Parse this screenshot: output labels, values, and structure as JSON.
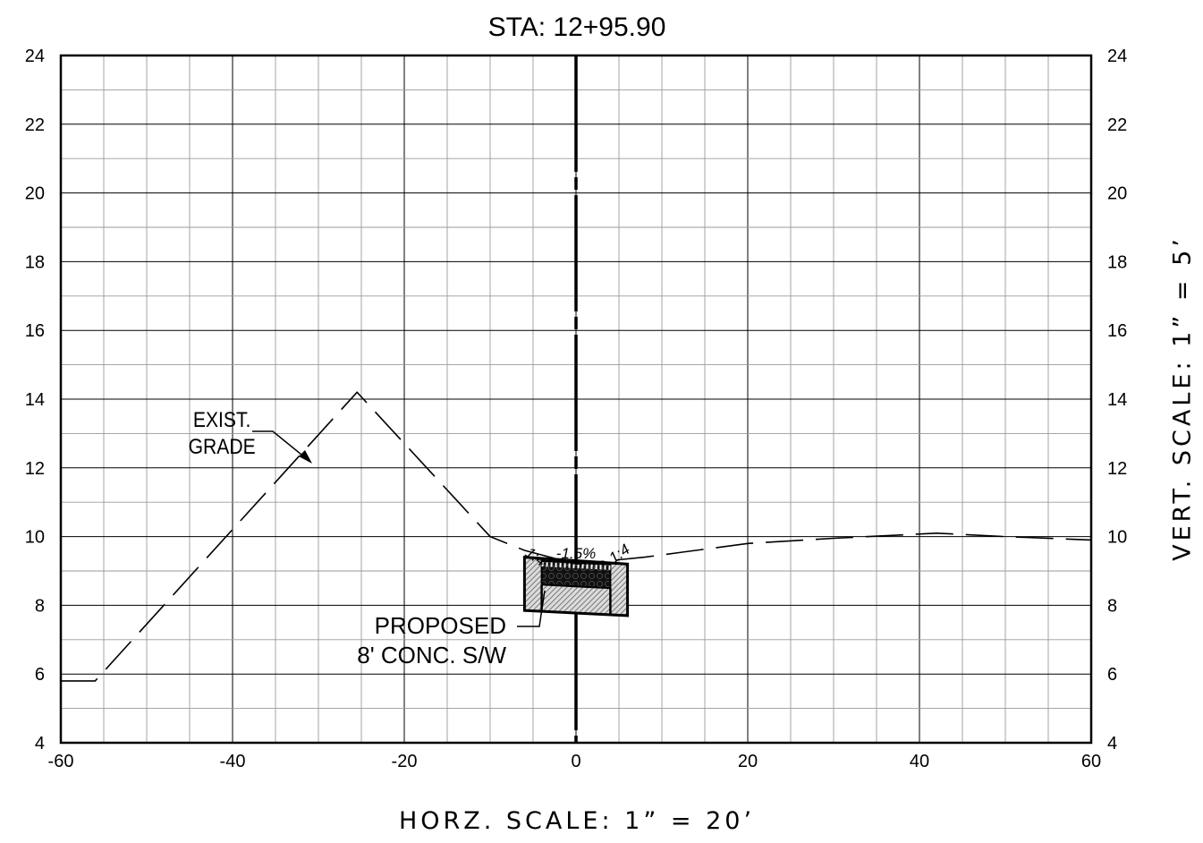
{
  "title": "STA: 12+95.90",
  "horizontal_scale": "HORZ.  SCALE:  1”  =  20’",
  "vertical_scale": "VERT.  SCALE:  1”  =  5’",
  "labels": {
    "exist_grade_line1": "EXIST.",
    "exist_grade_line2": "GRADE",
    "proposed_line1": "PROPOSED",
    "proposed_line2": "8' CONC. S/W",
    "slope_left": "1:4",
    "slope_center": "-1.5%",
    "slope_right": "1:4"
  },
  "chart_data": {
    "type": "line",
    "title": "STA: 12+95.90",
    "xlabel": "HORZ.  SCALE:  1”  =  20’",
    "ylabel": "VERT.  SCALE:  1”  =  5’",
    "xlim": [
      -60,
      60
    ],
    "ylim": [
      4,
      24
    ],
    "x_ticks": [
      -60,
      -40,
      -20,
      0,
      20,
      40,
      60
    ],
    "x_tick_labels": [
      "-60",
      "-40",
      "-20",
      "0",
      "20",
      "40",
      "60"
    ],
    "y_ticks": [
      4,
      6,
      8,
      10,
      12,
      14,
      16,
      18,
      20,
      22,
      24
    ],
    "y_tick_labels": [
      "4",
      "6",
      "8",
      "10",
      "12",
      "14",
      "16",
      "18",
      "20",
      "22",
      "24"
    ],
    "grid": true,
    "series": [
      {
        "name": "EXIST. GRADE",
        "style": "dashed",
        "x": [
          -60,
          -56,
          -25.5,
          -10,
          -6,
          0,
          8,
          20,
          30,
          42,
          50,
          60
        ],
        "y": [
          5.8,
          5.8,
          14.2,
          10.0,
          9.6,
          9.2,
          9.4,
          9.8,
          9.95,
          10.1,
          10.0,
          9.9
        ]
      }
    ],
    "proposed_section": {
      "name": "PROPOSED 8' CONC. S/W",
      "outer_left_x": -6,
      "outer_right_x": 6,
      "top_left_y": 9.4,
      "top_right_y": 9.2,
      "bottom_left_y": 7.85,
      "bottom_right_y": 7.7,
      "concrete_left_x": -4,
      "concrete_right_x": 4,
      "concrete_top_left_y": 9.3,
      "concrete_top_right_y": 9.2,
      "concrete_bottom_left_y": 8.6,
      "concrete_bottom_right_y": 8.5
    },
    "centerline_x": 0
  }
}
